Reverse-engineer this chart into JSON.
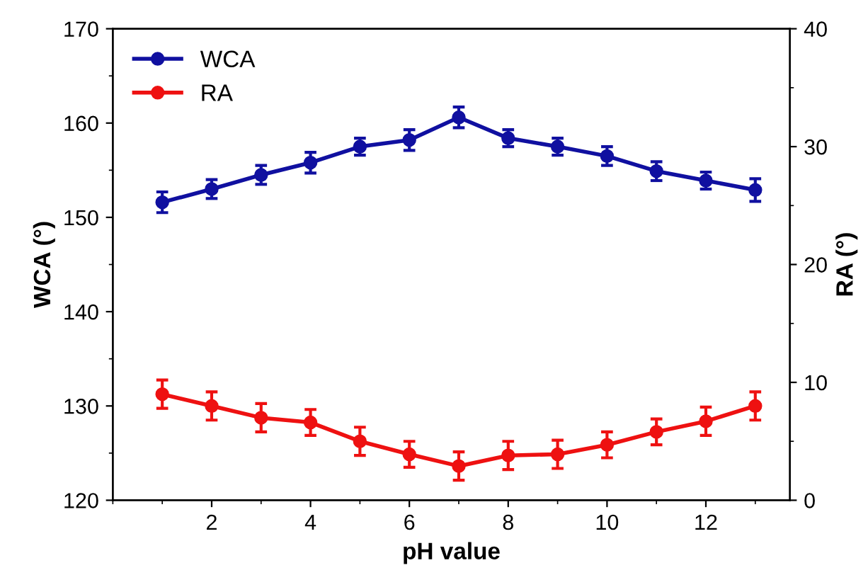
{
  "chart_data": {
    "type": "line",
    "xlabel": "pH value",
    "ylabel": "WCA (°)",
    "y2label": "RA (°)",
    "x": [
      1,
      2,
      3,
      4,
      5,
      6,
      7,
      8,
      9,
      10,
      11,
      12,
      13
    ],
    "series": [
      {
        "name": "WCA",
        "color": "#1010a0",
        "values": [
          151.6,
          153.0,
          154.5,
          155.8,
          157.5,
          158.2,
          160.6,
          158.4,
          157.5,
          156.5,
          154.9,
          153.9,
          152.9
        ],
        "errors": [
          1.1,
          1.0,
          1.0,
          1.1,
          0.9,
          1.1,
          1.1,
          0.9,
          0.9,
          1.0,
          1.0,
          0.9,
          1.2
        ]
      },
      {
        "name": "RA",
        "color": "#ee1111",
        "axis": "y2",
        "values": [
          9.0,
          8.0,
          7.0,
          6.6,
          5.0,
          3.9,
          2.9,
          3.8,
          3.9,
          4.7,
          5.8,
          6.7,
          8.0
        ],
        "errors": [
          1.2,
          1.2,
          1.2,
          1.1,
          1.2,
          1.1,
          1.2,
          1.2,
          1.2,
          1.1,
          1.1,
          1.2,
          1.2
        ]
      }
    ],
    "xlim": [
      0,
      13.7
    ],
    "xticks": [
      2,
      4,
      6,
      8,
      10,
      12
    ],
    "ylim": [
      120,
      170
    ],
    "yticks": [
      120,
      130,
      140,
      150,
      160,
      170
    ],
    "y2lim": [
      0,
      40
    ],
    "y2ticks": [
      0,
      10,
      20,
      30,
      40
    ],
    "marker": "circle",
    "line_style": "solid",
    "legend": "top left",
    "grid": false
  }
}
